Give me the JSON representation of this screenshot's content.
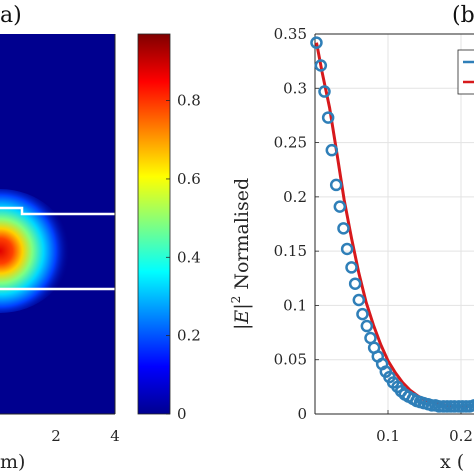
{
  "chart_data": [
    {
      "type": "heatmap",
      "panel_label": "a)",
      "x_ticks": [
        "2",
        "4"
      ],
      "xlabel_fragment": "m)",
      "colorbar": {
        "range": [
          0,
          0.97
        ],
        "ticks": [
          "0",
          "0.2",
          "0.4",
          "0.6",
          "0.8"
        ],
        "colormap": "jet"
      }
    },
    {
      "type": "line",
      "panel_label": "(b",
      "xlabel": "x (",
      "ylabel_main": "|E|",
      "ylabel_sup": "2",
      "ylabel_rest": " Normalised",
      "xlim": [
        0,
        0.3
      ],
      "ylim": [
        0,
        0.35
      ],
      "x_ticks": [
        "0.1",
        "0.2"
      ],
      "y_ticks": [
        "0",
        "0.05",
        "0.1",
        "0.15",
        "0.2",
        "0.25",
        "0.3",
        "0.35"
      ],
      "grid": true,
      "series": [
        {
          "style": "markers",
          "color": "#2f7fb8",
          "x": [
            0.002,
            0.008,
            0.013,
            0.018,
            0.023,
            0.029,
            0.034,
            0.039,
            0.044,
            0.05,
            0.055,
            0.06,
            0.065,
            0.071,
            0.076,
            0.081,
            0.086,
            0.092,
            0.097,
            0.102,
            0.107,
            0.113,
            0.118,
            0.123,
            0.128,
            0.134,
            0.139,
            0.144,
            0.149,
            0.155,
            0.16,
            0.165,
            0.17,
            0.176,
            0.181,
            0.186,
            0.191,
            0.197,
            0.202,
            0.207,
            0.212,
            0.218,
            0.223,
            0.228,
            0.233,
            0.239,
            0.244,
            0.249,
            0.254,
            0.26,
            0.265,
            0.27
          ],
          "y": [
            0.342,
            0.321,
            0.297,
            0.273,
            0.243,
            0.211,
            0.191,
            0.171,
            0.152,
            0.135,
            0.12,
            0.105,
            0.092,
            0.081,
            0.07,
            0.061,
            0.053,
            0.046,
            0.039,
            0.034,
            0.029,
            0.025,
            0.021,
            0.018,
            0.016,
            0.014,
            0.012,
            0.011,
            0.01,
            0.009,
            0.008,
            0.008,
            0.007,
            0.007,
            0.007,
            0.007,
            0.007,
            0.007,
            0.007,
            0.007,
            0.007,
            0.008,
            0.008,
            0.008,
            0.008,
            0.009,
            0.009,
            0.01,
            0.01,
            0.011,
            0.012,
            0.013
          ]
        },
        {
          "style": "line",
          "color": "#d7191c",
          "x": [
            0.002,
            0.01,
            0.02,
            0.03,
            0.04,
            0.05,
            0.06,
            0.07,
            0.08,
            0.09,
            0.1,
            0.11,
            0.12,
            0.13,
            0.14,
            0.15,
            0.16,
            0.17,
            0.18,
            0.19,
            0.2,
            0.21,
            0.22,
            0.23,
            0.24,
            0.25,
            0.26,
            0.27
          ],
          "y": [
            0.342,
            0.314,
            0.282,
            0.24,
            0.197,
            0.162,
            0.13,
            0.103,
            0.082,
            0.064,
            0.049,
            0.038,
            0.029,
            0.022,
            0.017,
            0.013,
            0.011,
            0.009,
            0.008,
            0.007,
            0.007,
            0.007,
            0.007,
            0.008,
            0.009,
            0.01,
            0.011,
            0.013
          ]
        }
      ]
    }
  ]
}
